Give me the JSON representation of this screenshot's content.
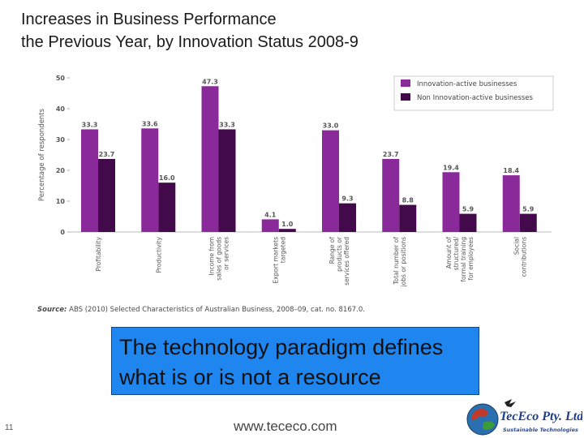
{
  "slide": {
    "title_line1": "Increases in Business Performance",
    "title_line2": "the Previous Year, by Innovation Status 2008-9",
    "source_prefix": "Source:",
    "source_text": " ABS (2010) Selected Characteristics of Australian Business, 2008–09, cat. no. 8167.0.",
    "callout_line1": "The technology paradigm defines",
    "callout_line2": "what is or is not a resource",
    "slide_number": "11",
    "footer_url": "www.tececo.com",
    "logo_name": "TecEco Pty. Ltd.",
    "logo_tagline": "Sustainable Technologies"
  },
  "colors": {
    "innovation_active": "#8a2a9a",
    "non_innovation_active": "#420a4a",
    "axis_text": "#555555",
    "callout_bg": "#1f86f0"
  },
  "chart_data": {
    "type": "bar",
    "title": "",
    "ylabel": "Percentage of respondents",
    "xlabel": "",
    "ylim": [
      0,
      50
    ],
    "yticks": [
      0,
      10,
      20,
      30,
      40,
      50
    ],
    "grid": false,
    "legend_position": "top-right",
    "categories": [
      [
        "Profitability"
      ],
      [
        "Productivity"
      ],
      [
        "Income from",
        "sales of goods",
        "or services"
      ],
      [
        "Export markets",
        "targeted"
      ],
      [
        "Range of",
        "products or",
        "services offered"
      ],
      [
        "Total number of",
        "jobs or positions"
      ],
      [
        "Amount of",
        "structured/",
        "formal training",
        "for employees"
      ],
      [
        "Social",
        "contributions"
      ]
    ],
    "series": [
      {
        "name": "Innovation-active businesses",
        "values": [
          33.3,
          33.6,
          47.3,
          4.1,
          33.0,
          23.7,
          19.4,
          18.4
        ]
      },
      {
        "name": "Non Innovation-active businesses",
        "values": [
          23.7,
          16.0,
          33.3,
          1.0,
          9.3,
          8.8,
          5.9,
          5.9
        ]
      }
    ]
  }
}
